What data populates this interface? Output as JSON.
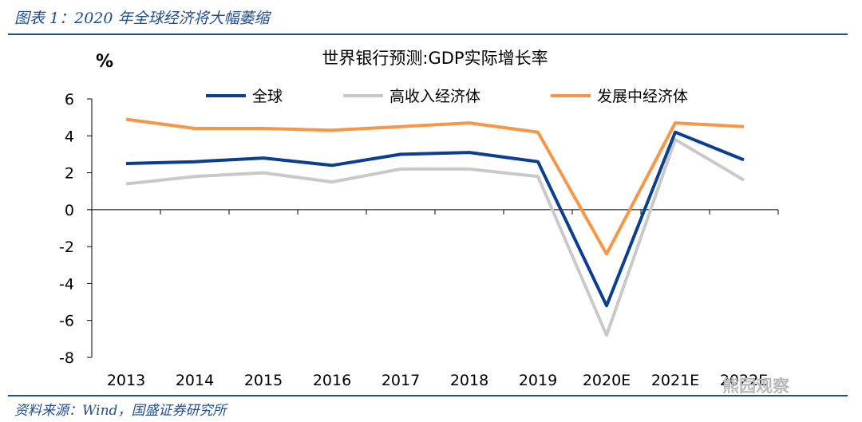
{
  "figure_title": "图表 1：2020 年全球经济将大幅萎缩",
  "source": "资料来源：Wind，国盛证券研究所",
  "watermark": "熊园观察",
  "chart_data": {
    "type": "line",
    "title": "世界银行预测:GDP实际增长率",
    "ylabel": "%",
    "xlabel": "",
    "categories": [
      "2013",
      "2014",
      "2015",
      "2016",
      "2017",
      "2018",
      "2019",
      "2020E",
      "2021E",
      "2022E"
    ],
    "ylim": [
      -8,
      6
    ],
    "yticks": [
      6,
      4,
      2,
      0,
      -2,
      -4,
      -6,
      -8
    ],
    "grid": false,
    "legend_position": "top",
    "series": [
      {
        "name": "全球",
        "color": "#0b3d91",
        "values": [
          2.5,
          2.6,
          2.8,
          2.4,
          3.0,
          3.1,
          2.6,
          -5.2,
          4.2,
          2.7
        ]
      },
      {
        "name": "高收入经济体",
        "color": "#c9c9c9",
        "values": [
          1.4,
          1.8,
          2.0,
          1.5,
          2.2,
          2.2,
          1.8,
          -6.8,
          3.8,
          1.6
        ]
      },
      {
        "name": "发展中经济体",
        "color": "#f79646",
        "values": [
          4.9,
          4.4,
          4.4,
          4.3,
          4.5,
          4.7,
          4.2,
          -2.4,
          4.7,
          4.5
        ]
      }
    ]
  }
}
